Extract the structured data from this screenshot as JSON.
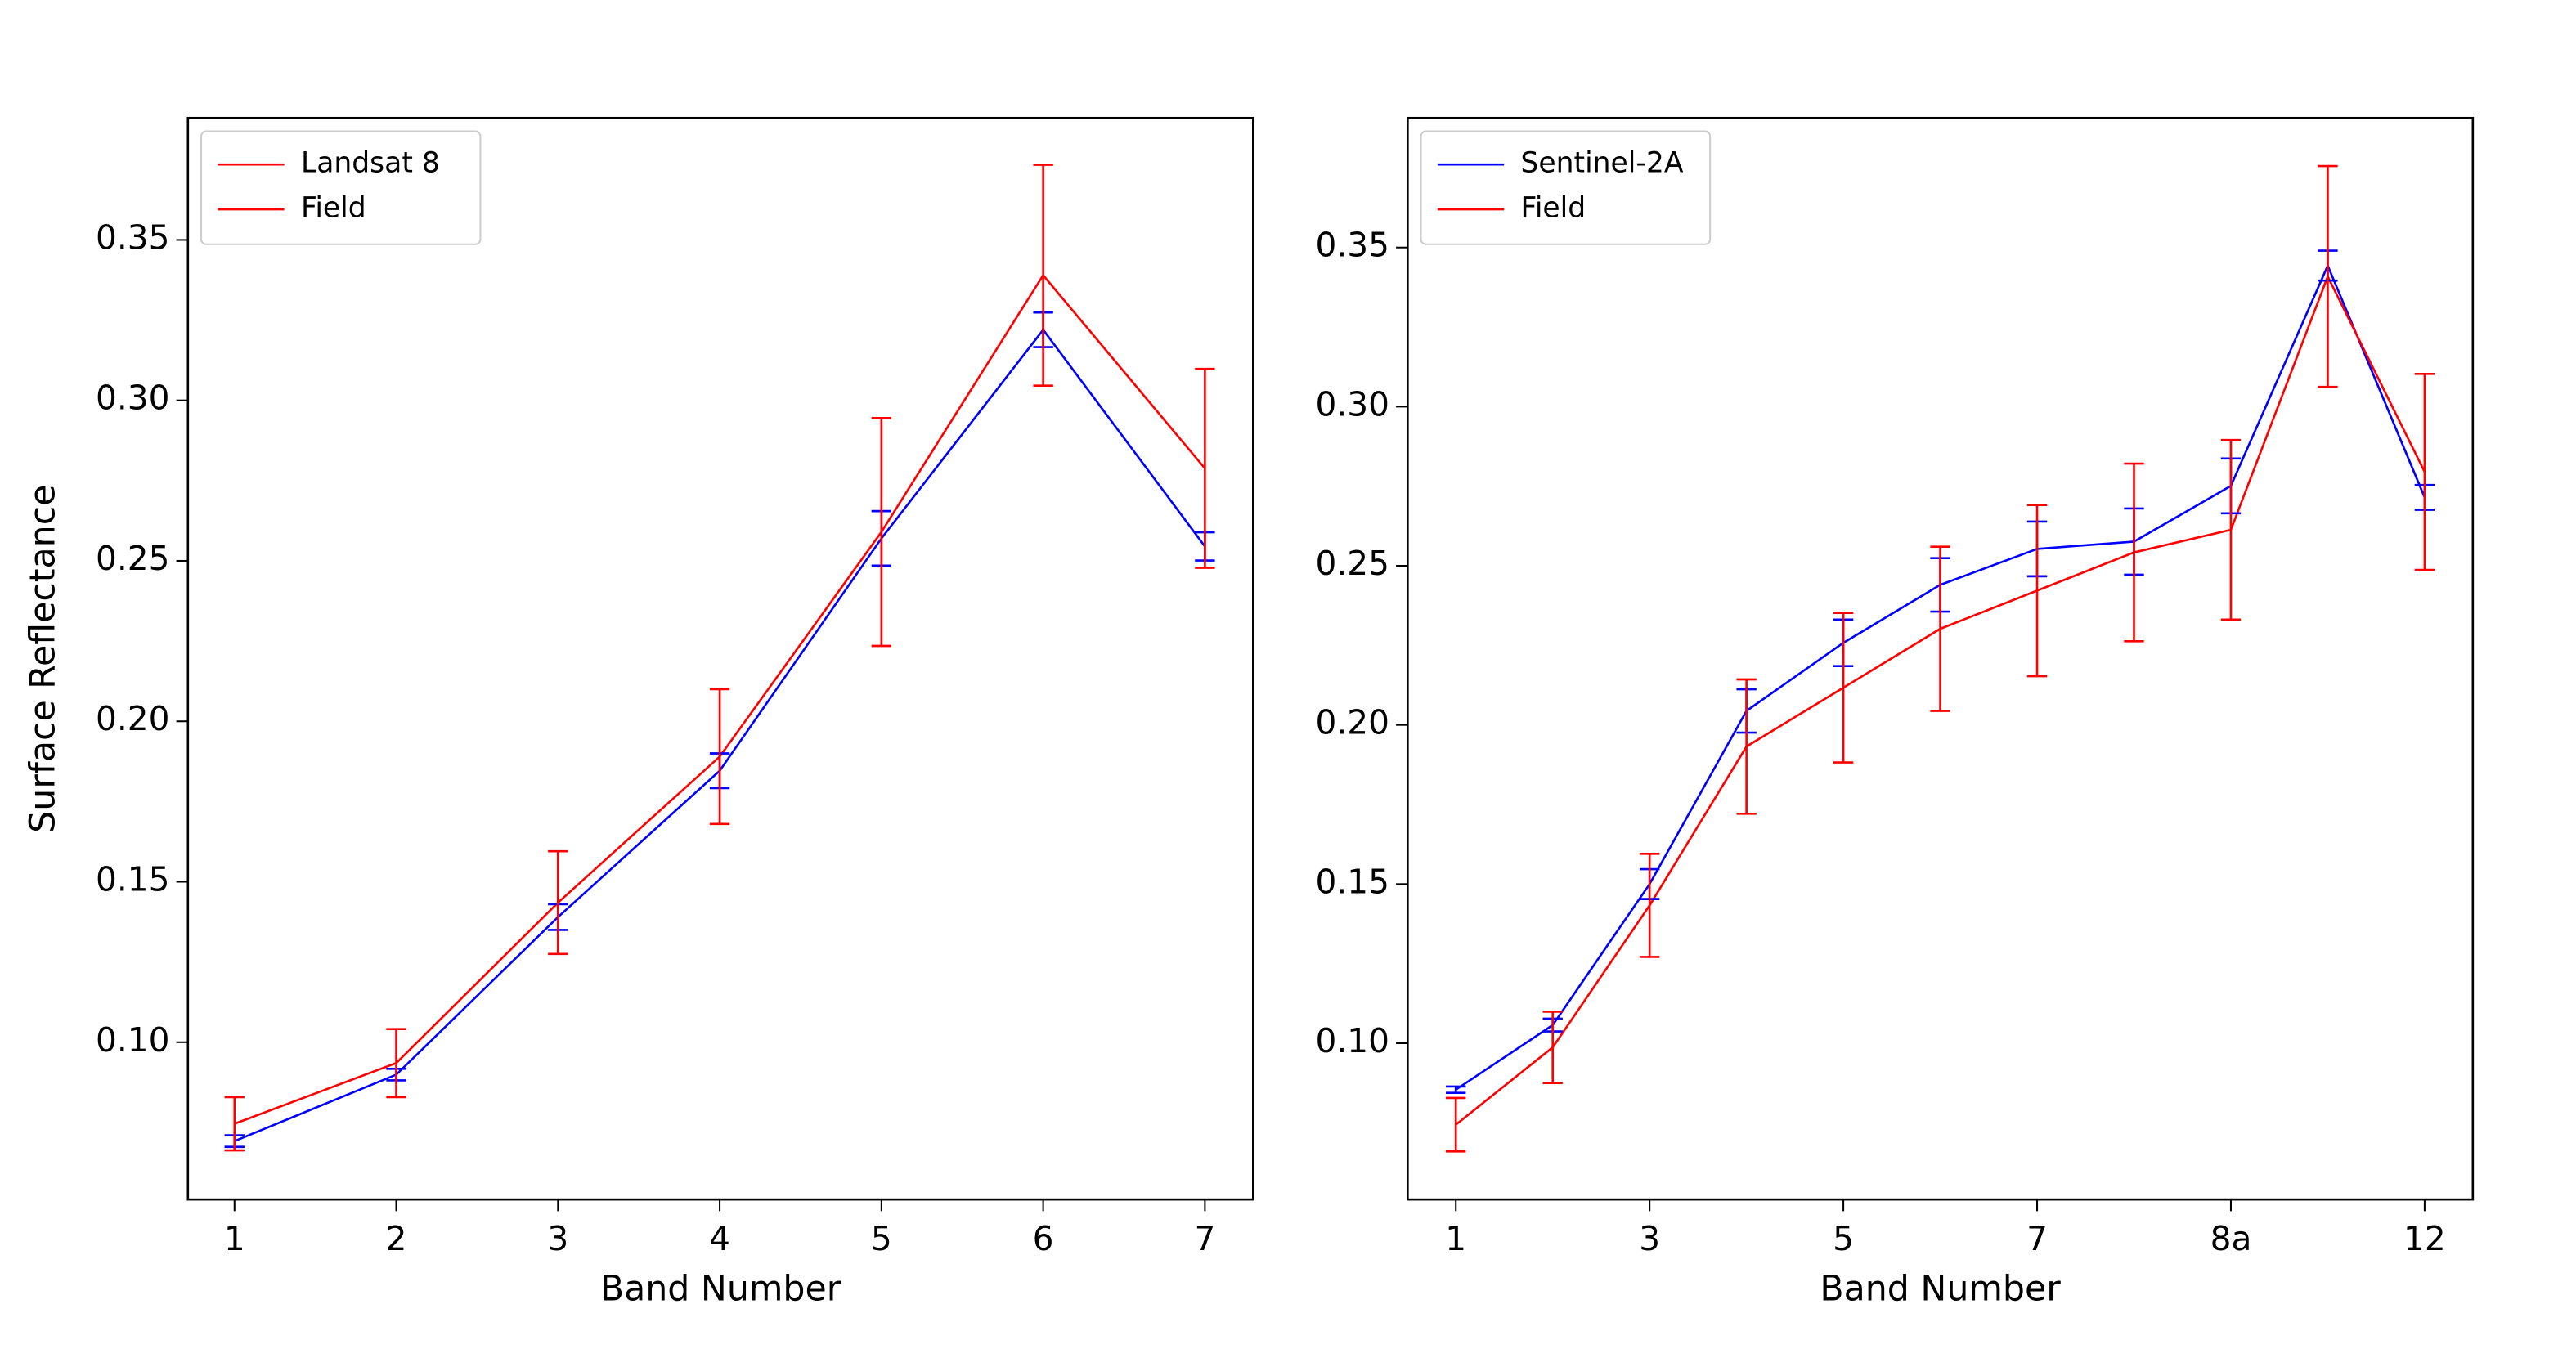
{
  "chart_data": [
    {
      "type": "line",
      "xlabel": "Band Number",
      "ylabel": "Surface Reflectance",
      "x": [
        1,
        2,
        3,
        4,
        5,
        6,
        7
      ],
      "xlim": [
        0.712,
        7.298
      ],
      "xticks": [
        1,
        2,
        3,
        4,
        5,
        6,
        7
      ],
      "ylim": [
        0.051,
        0.388
      ],
      "yticks": [
        {
          "value": 0.1,
          "label": "0.10"
        },
        0.15,
        {
          "value": 0.2,
          "label": "0.20"
        },
        0.25,
        {
          "value": 0.3,
          "label": "0.30"
        },
        0.35
      ],
      "legend": "upper left",
      "series": [
        {
          "name": "Landsat 8",
          "color": "#0000ff",
          "legend_color": "#ff0000",
          "values": [
            0.0692,
            0.0899,
            0.139,
            0.1846,
            0.257,
            0.322,
            0.2545
          ],
          "errors": [
            0.0018,
            0.0018,
            0.004,
            0.0054,
            0.0085,
            0.0054,
            0.0044
          ]
        },
        {
          "name": "Field",
          "color": "#ff0000",
          "values": [
            0.0746,
            0.0935,
            0.1435,
            0.189,
            0.259,
            0.339,
            0.2788
          ],
          "errors": [
            0.0083,
            0.0106,
            0.016,
            0.021,
            0.0355,
            0.0344,
            0.031
          ]
        }
      ]
    },
    {
      "type": "line",
      "xlabel": "Band Number",
      "categories": [
        "1",
        null,
        "3",
        null,
        "5",
        null,
        "7",
        null,
        "8a",
        null,
        "12"
      ],
      "ylim": [
        0.0509,
        0.3907
      ],
      "yticks": [
        {
          "value": 0.1,
          "label": "0.10"
        },
        0.15,
        {
          "value": 0.2,
          "label": "0.20"
        },
        0.25,
        {
          "value": 0.3,
          "label": "0.30"
        },
        0.35
      ],
      "legend": "upper left",
      "series": [
        {
          "name": "Sentinel-2A",
          "color": "#0000ff",
          "values": [
            0.0854,
            0.1057,
            0.15,
            0.2044,
            0.2258,
            0.244,
            0.2553,
            0.2576,
            0.2751,
            0.3443,
            0.2715
          ],
          "errors": [
            0.001,
            0.002,
            0.0047,
            0.0068,
            0.0073,
            0.0084,
            0.0086,
            0.0104,
            0.0086,
            0.0047,
            0.0039
          ]
        },
        {
          "name": "Field",
          "color": "#ff0000",
          "values": [
            0.0744,
            0.0987,
            0.1433,
            0.1932,
            0.2117,
            0.2302,
            0.2422,
            0.2542,
            0.2613,
            0.3409,
            0.2795
          ],
          "errors": [
            0.0084,
            0.0112,
            0.0162,
            0.0211,
            0.0235,
            0.0258,
            0.0269,
            0.0279,
            0.0282,
            0.0347,
            0.0308
          ]
        }
      ]
    }
  ]
}
